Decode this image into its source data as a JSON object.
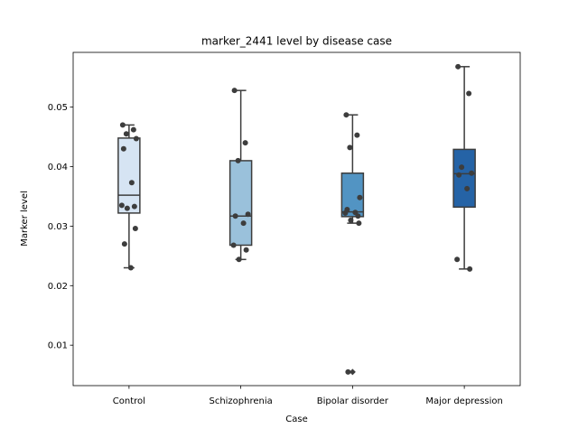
{
  "chart_data": {
    "type": "box",
    "title": "marker_2441 level by disease case",
    "xlabel": "Case",
    "ylabel": "Marker level",
    "ylim": [
      0.0032,
      0.0592
    ],
    "yticks": [
      0.01,
      0.02,
      0.03,
      0.04,
      0.05
    ],
    "ytick_labels": [
      "0.01",
      "0.02",
      "0.03",
      "0.04",
      "0.05"
    ],
    "grid": false,
    "categories": [
      "Control",
      "Schizophrenia",
      "Bipolar disorder",
      "Major depression"
    ],
    "colors": [
      "#d6e4f3",
      "#9ac1db",
      "#5294c3",
      "#2563a6"
    ],
    "boxes": [
      {
        "whisker_low": 0.023,
        "q1": 0.0322,
        "median": 0.0352,
        "q3": 0.0448,
        "whisker_high": 0.047,
        "outliers": []
      },
      {
        "whisker_low": 0.0244,
        "q1": 0.0268,
        "median": 0.0317,
        "q3": 0.041,
        "whisker_high": 0.0528,
        "outliers": []
      },
      {
        "whisker_low": 0.0305,
        "q1": 0.0316,
        "median": 0.0324,
        "q3": 0.0389,
        "whisker_high": 0.0487,
        "outliers": [
          0.0055
        ]
      },
      {
        "whisker_low": 0.0228,
        "q1": 0.0332,
        "median": 0.0388,
        "q3": 0.0429,
        "whisker_high": 0.0568,
        "outliers": []
      }
    ],
    "points": [
      [
        0.047,
        0.0462,
        0.0455,
        0.0447,
        0.043,
        0.0373,
        0.0335,
        0.0333,
        0.033,
        0.0296,
        0.027,
        0.023
      ],
      [
        0.0528,
        0.044,
        0.041,
        0.032,
        0.0317,
        0.0305,
        0.0268,
        0.026,
        0.0244
      ],
      [
        0.0487,
        0.0453,
        0.0432,
        0.0348,
        0.0328,
        0.0323,
        0.0322,
        0.0317,
        0.031,
        0.0305,
        0.0055
      ],
      [
        0.0568,
        0.0523,
        0.0399,
        0.0389,
        0.0386,
        0.0363,
        0.0244,
        0.0228
      ]
    ]
  }
}
